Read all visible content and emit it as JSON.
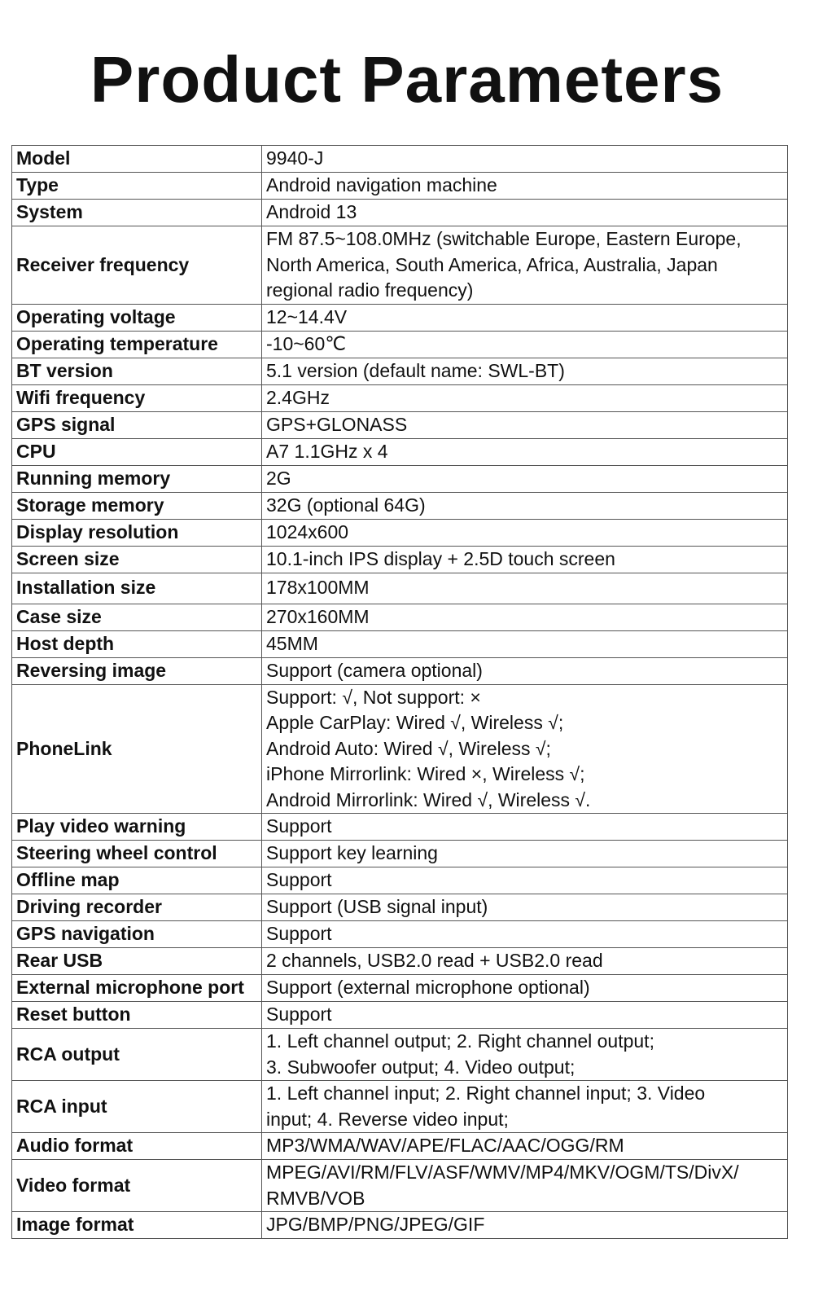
{
  "title": "Product Parameters",
  "rows": [
    {
      "label": "Model",
      "value": [
        "9940-J"
      ]
    },
    {
      "label": "Type",
      "value": [
        "Android navigation machine"
      ]
    },
    {
      "label": "System",
      "value": [
        "Android 13"
      ]
    },
    {
      "label": "Receiver frequency",
      "value": [
        "FM 87.5~108.0MHz (switchable Europe, Eastern Europe,",
        "North America, South America, Africa, Australia, Japan",
        "regional radio frequency)"
      ]
    },
    {
      "label": "Operating voltage",
      "value": [
        "12~14.4V"
      ]
    },
    {
      "label": "Operating temperature",
      "value": [
        "-10~60℃"
      ]
    },
    {
      "label": "BT version",
      "value": [
        "5.1 version (default name: SWL-BT)"
      ]
    },
    {
      "label": "Wifi frequency",
      "value": [
        "2.4GHz"
      ]
    },
    {
      "label": "GPS signal",
      "value": [
        "GPS+GLONASS"
      ]
    },
    {
      "label": "CPU",
      "value": [
        "A7 1.1GHz x 4"
      ]
    },
    {
      "label": "Running memory",
      "value": [
        "2G"
      ]
    },
    {
      "label": "Storage memory",
      "value": [
        "32G (optional 64G)"
      ]
    },
    {
      "label": "Display resolution",
      "value": [
        "1024x600"
      ]
    },
    {
      "label": "Screen size",
      "value": [
        "10.1-inch IPS display + 2.5D touch screen"
      ]
    },
    {
      "label": "Installation size",
      "value": [
        "178x100MM"
      ]
    },
    {
      "label": "Case size",
      "value": [
        "270x160MM"
      ]
    },
    {
      "label": "Host depth",
      "value": [
        "45MM"
      ]
    },
    {
      "label": "Reversing image",
      "value": [
        "Support (camera optional)"
      ]
    },
    {
      "label": "PhoneLink",
      "value": [
        "Support: √, Not support: ×",
        "Apple CarPlay: Wired √, Wireless √;",
        "Android Auto: Wired √, Wireless √;",
        "iPhone Mirrorlink: Wired ×, Wireless √;",
        "Android Mirrorlink: Wired √, Wireless √."
      ]
    },
    {
      "label": "Play video warning",
      "value": [
        "Support"
      ]
    },
    {
      "label": "Steering wheel control",
      "value": [
        "Support key learning"
      ]
    },
    {
      "label": "Offline map",
      "value": [
        "Support"
      ]
    },
    {
      "label": "Driving recorder",
      "value": [
        "Support (USB signal input)"
      ]
    },
    {
      "label": "GPS navigation",
      "value": [
        "Support"
      ]
    },
    {
      "label": "Rear USB",
      "value": [
        "2 channels, USB2.0 read + USB2.0 read"
      ]
    },
    {
      "label": "External microphone port",
      "value": [
        "Support (external microphone optional)"
      ]
    },
    {
      "label": "Reset button",
      "value": [
        "Support"
      ]
    },
    {
      "label": "RCA output",
      "value": [
        "1. Left channel output; 2. Right channel output;",
        "3. Subwoofer output; 4. Video output;"
      ]
    },
    {
      "label": "RCA input",
      "value": [
        "1. Left channel input; 2. Right channel input; 3. Video",
        "input; 4. Reverse video input;"
      ]
    },
    {
      "label": "Audio format",
      "value": [
        "MP3/WMA/WAV/APE/FLAC/AAC/OGG/RM"
      ]
    },
    {
      "label": "Video format",
      "value": [
        "MPEG/AVI/RM/FLV/ASF/WMV/MP4/MKV/OGM/TS/DivX/",
        "RMVB/VOB"
      ]
    },
    {
      "label": "Image format",
      "value": [
        "JPG/BMP/PNG/JPEG/GIF"
      ]
    }
  ]
}
